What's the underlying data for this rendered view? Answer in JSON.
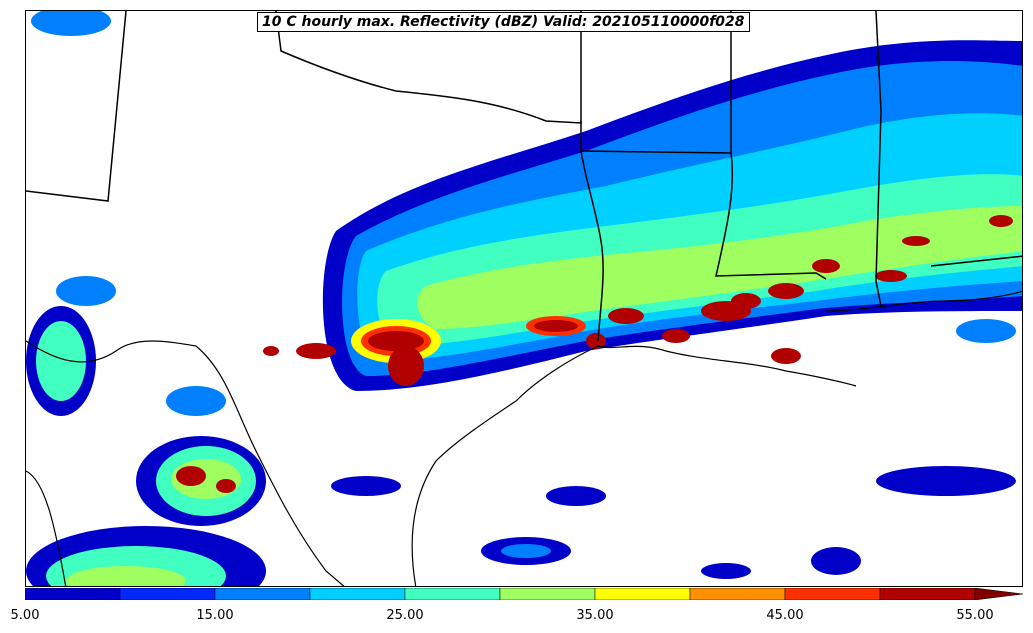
{
  "map": {
    "title": "10 C hourly max. Reflectivity (dBZ) Valid: 202105110000f028",
    "field": "Reflectivity (dBZ)",
    "region": "South-central United States / northern Gulf of Mexico"
  },
  "colorbar": {
    "min": 5.0,
    "max": 55.0,
    "extend": "max",
    "ticks": [
      "5.00",
      "15.00",
      "25.00",
      "35.00",
      "45.00",
      "55.00"
    ],
    "levels": [
      5,
      10,
      15,
      20,
      25,
      30,
      35,
      40,
      45,
      50,
      55
    ],
    "colors": [
      "#0000c8",
      "#0028ff",
      "#0080ff",
      "#00d0ff",
      "#40ffc0",
      "#a0ff60",
      "#ffff00",
      "#ff9000",
      "#ff3000",
      "#b00000",
      "#800000"
    ]
  }
}
